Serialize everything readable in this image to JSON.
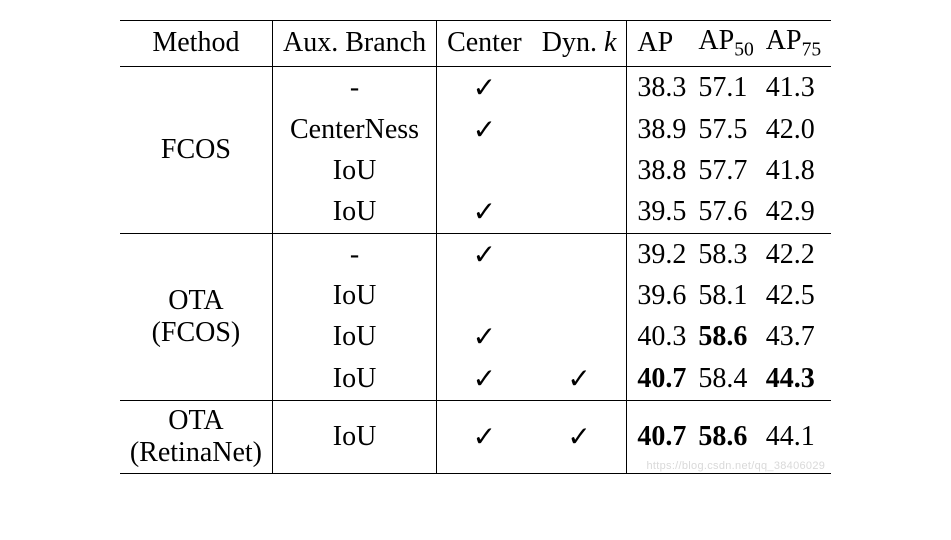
{
  "header": {
    "method": "Method",
    "aux": "Aux. Branch",
    "center": "Center",
    "dynk_prefix": "Dyn. ",
    "dynk_var": "k",
    "ap": "AP",
    "ap50_prefix": "AP",
    "ap50_sub": "50",
    "ap75_prefix": "AP",
    "ap75_sub": "75"
  },
  "methods": {
    "fcos": "FCOS",
    "ota_fcos_l1": "OTA",
    "ota_fcos_l2": "(FCOS)",
    "ota_retina_l1": "OTA",
    "ota_retina_l2": "(RetinaNet)"
  },
  "aux": {
    "dash": "-",
    "centerness": "CenterNess",
    "iou": "IoU"
  },
  "check": "✓",
  "rows": {
    "r1": {
      "ap": "38.3",
      "ap50": "57.1",
      "ap75": "41.3"
    },
    "r2": {
      "ap": "38.9",
      "ap50": "57.5",
      "ap75": "42.0"
    },
    "r3": {
      "ap": "38.8",
      "ap50": "57.7",
      "ap75": "41.8"
    },
    "r4": {
      "ap": "39.5",
      "ap50": "57.6",
      "ap75": "42.9"
    },
    "r5": {
      "ap": "39.2",
      "ap50": "58.3",
      "ap75": "42.2"
    },
    "r6": {
      "ap": "39.6",
      "ap50": "58.1",
      "ap75": "42.5"
    },
    "r7": {
      "ap": "40.3",
      "ap50": "58.6",
      "ap75": "43.7"
    },
    "r8": {
      "ap": "40.7",
      "ap50": "58.4",
      "ap75": "44.3"
    },
    "r9": {
      "ap": "40.7",
      "ap50": "58.6",
      "ap75": "44.1"
    }
  },
  "watermark": "https://blog.csdn.net/qq_38406029"
}
